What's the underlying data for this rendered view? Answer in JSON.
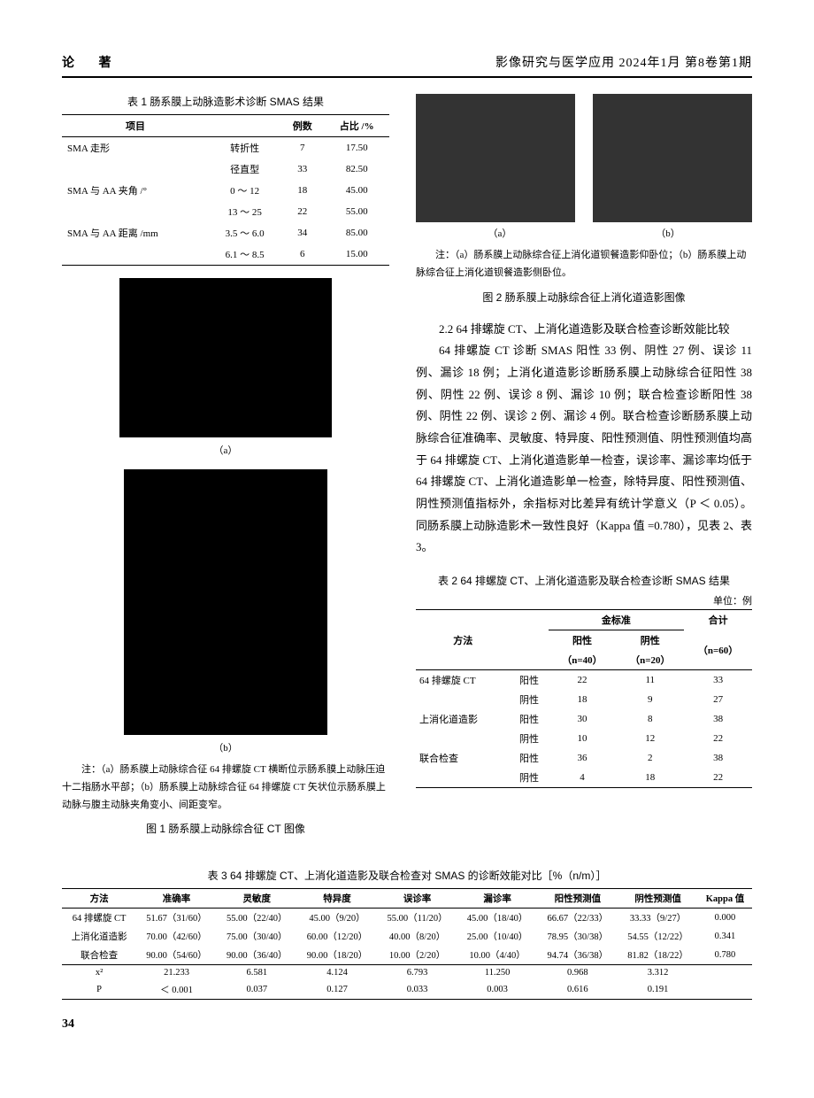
{
  "header": {
    "left": "论 著",
    "right": "影像研究与医学应用  2024年1月  第8卷第1期"
  },
  "table1": {
    "title": "表 1  肠系膜上动脉造影术诊断 SMAS 结果",
    "headers": [
      "项目",
      "",
      "例数",
      "占比 /%"
    ],
    "rows": [
      [
        "SMA 走形",
        "转折性",
        "7",
        "17.50"
      ],
      [
        "",
        "径直型",
        "33",
        "82.50"
      ],
      [
        "SMA 与 AA 夹角 /°",
        "0 ～ 12",
        "18",
        "45.00"
      ],
      [
        "",
        "13 ～ 25",
        "22",
        "55.00"
      ],
      [
        "SMA 与 AA 距离 /mm",
        "3.5 ～ 6.0",
        "34",
        "85.00"
      ],
      [
        "",
        "6.1 ～ 8.5",
        "6",
        "15.00"
      ]
    ]
  },
  "fig1": {
    "sub_a": "（a）",
    "sub_b": "（b）",
    "note": "注：（a）肠系膜上动脉综合征 64 排螺旋 CT 横断位示肠系膜上动脉压迫十二指肠水平部；（b）肠系膜上动脉综合征 64 排螺旋 CT 矢状位示肠系膜上动脉与腹主动脉夹角变小、间距变窄。",
    "title": "图 1  肠系膜上动脉综合征 CT 图像"
  },
  "fig2": {
    "sub_a": "（a）",
    "sub_b": "（b）",
    "note": "注：（a）肠系膜上动脉综合征上消化道钡餐造影仰卧位；（b）肠系膜上动脉综合征上消化道钡餐造影侧卧位。",
    "title": "图 2  肠系膜上动脉综合征上消化道造影图像"
  },
  "section22": {
    "title": "2.2  64 排螺旋 CT、上消化道造影及联合检查诊断效能比较",
    "body": "64 排螺旋 CT 诊断 SMAS 阳性 33 例、阴性 27 例、误诊 11 例、漏诊 18 例；上消化道造影诊断肠系膜上动脉综合征阳性 38 例、阴性 22 例、误诊 8 例、漏诊 10 例；联合检查诊断阳性 38 例、阴性 22 例、误诊 2 例、漏诊 4 例。联合检查诊断肠系膜上动脉综合征准确率、灵敏度、特异度、阳性预测值、阴性预测值均高于 64 排螺旋 CT、上消化道造影单一检查，误诊率、漏诊率均低于 64 排螺旋 CT、上消化道造影单一检查，除特异度、阳性预测值、阴性预测值指标外，余指标对比差异有统计学意义（P ＜ 0.05）。同肠系膜上动脉造影术一致性良好（Kappa 值 =0.780），见表 2、表 3。"
  },
  "table2": {
    "title": "表 2  64 排螺旋 CT、上消化道造影及联合检查诊断 SMAS 结果",
    "unit": "单位：例",
    "head_method": "方法",
    "head_gold": "金标准",
    "head_total": "合计",
    "head_pos": "阳性",
    "head_neg": "阴性",
    "sub_pos": "（n=40）",
    "sub_neg": "（n=20）",
    "sub_total": "（n=60）",
    "rows": [
      [
        "64 排螺旋 CT",
        "阳性",
        "22",
        "11",
        "33"
      ],
      [
        "",
        "阴性",
        "18",
        "9",
        "27"
      ],
      [
        "上消化道造影",
        "阳性",
        "30",
        "8",
        "38"
      ],
      [
        "",
        "阴性",
        "10",
        "12",
        "22"
      ],
      [
        "联合检查",
        "阳性",
        "36",
        "2",
        "38"
      ],
      [
        "",
        "阴性",
        "4",
        "18",
        "22"
      ]
    ]
  },
  "table3": {
    "title": "表 3  64 排螺旋 CT、上消化道造影及联合检查对 SMAS 的诊断效能对比［%（n/m）］",
    "headers": [
      "方法",
      "准确率",
      "灵敏度",
      "特异度",
      "误诊率",
      "漏诊率",
      "阳性预测值",
      "阴性预测值",
      "Kappa 值"
    ],
    "rows": [
      [
        "64 排螺旋 CT",
        "51.67（31/60）",
        "55.00（22/40）",
        "45.00（9/20）",
        "55.00（11/20）",
        "45.00（18/40）",
        "66.67（22/33）",
        "33.33（9/27）",
        "0.000"
      ],
      [
        "上消化道造影",
        "70.00（42/60）",
        "75.00（30/40）",
        "60.00（12/20）",
        "40.00（8/20）",
        "25.00（10/40）",
        "78.95（30/38）",
        "54.55（12/22）",
        "0.341"
      ],
      [
        "联合检查",
        "90.00（54/60）",
        "90.00（36/40）",
        "90.00（18/20）",
        "10.00（2/20）",
        "10.00（4/40）",
        "94.74（36/38）",
        "81.82（18/22）",
        "0.780"
      ],
      [
        "x²",
        "21.233",
        "6.581",
        "4.124",
        "6.793",
        "11.250",
        "0.968",
        "3.312",
        ""
      ],
      [
        "P",
        "＜ 0.001",
        "0.037",
        "0.127",
        "0.033",
        "0.003",
        "0.616",
        "0.191",
        ""
      ]
    ]
  },
  "page_number": "34"
}
